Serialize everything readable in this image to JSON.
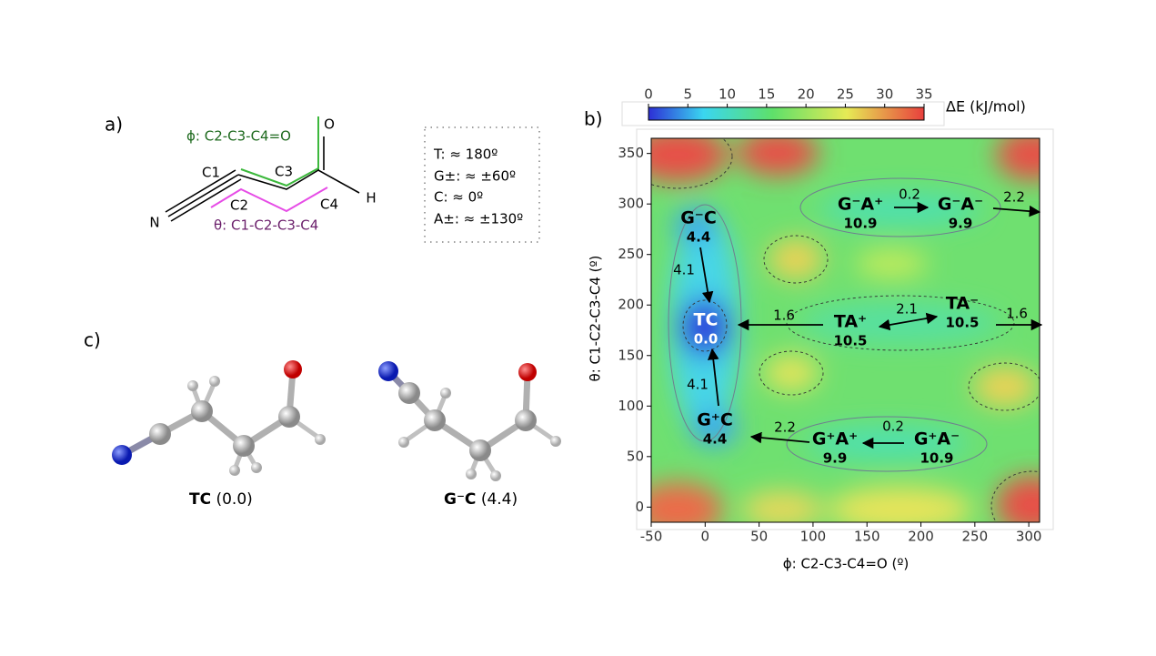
{
  "panel_a": {
    "label": "a)",
    "phi_label": "ϕ: C2-C3-C4=O",
    "theta_label": "θ: C1-C2-C3-C4",
    "atoms": [
      "N",
      "C1",
      "C2",
      "C3",
      "C4",
      "O",
      "H"
    ],
    "legend": [
      "T: ≈ 180º",
      "G±: ≈ ±60º",
      "C: ≈ 0º",
      "A±: ≈ ±130º"
    ]
  },
  "panel_b": {
    "label": "b)",
    "colorbar": {
      "label": "ΔE (kJ/mol)",
      "lim": [
        0,
        35
      ],
      "ticks": [
        0,
        5,
        10,
        15,
        20,
        25,
        30,
        35
      ]
    },
    "xlabel": "ϕ: C2-C3-C4=O (º)",
    "ylabel": "θ: C1-C2-C3-C4 (º)",
    "xlim": [
      -50,
      310
    ],
    "xticks": [
      -50,
      0,
      50,
      100,
      150,
      200,
      250,
      300
    ],
    "ylim": [
      -15,
      365
    ],
    "yticks": [
      0,
      50,
      100,
      150,
      200,
      250,
      300,
      350
    ],
    "minima": [
      {
        "name": "G⁻C",
        "energy": "4.4"
      },
      {
        "name": "TC",
        "energy": "0.0"
      },
      {
        "name": "G⁺C",
        "energy": "4.4"
      },
      {
        "name": "TA⁺",
        "energy": "10.5"
      },
      {
        "name": "TA⁻",
        "energy": "10.5"
      },
      {
        "name": "G⁺A⁺",
        "energy": "9.9"
      },
      {
        "name": "G⁺A⁻",
        "energy": "10.9"
      },
      {
        "name": "G⁻A⁺",
        "energy": "10.9"
      },
      {
        "name": "G⁻A⁻",
        "energy": "9.9"
      }
    ],
    "barriers": [
      "4.1",
      "4.1",
      "1.6",
      "2.1",
      "1.6",
      "2.2",
      "0.2",
      "0.2",
      "2.2"
    ]
  },
  "panel_c": {
    "label": "c)",
    "molecules": [
      {
        "name": "TC",
        "energy": "(0.0)"
      },
      {
        "name": "G⁻C",
        "energy": "(4.4)"
      }
    ]
  }
}
